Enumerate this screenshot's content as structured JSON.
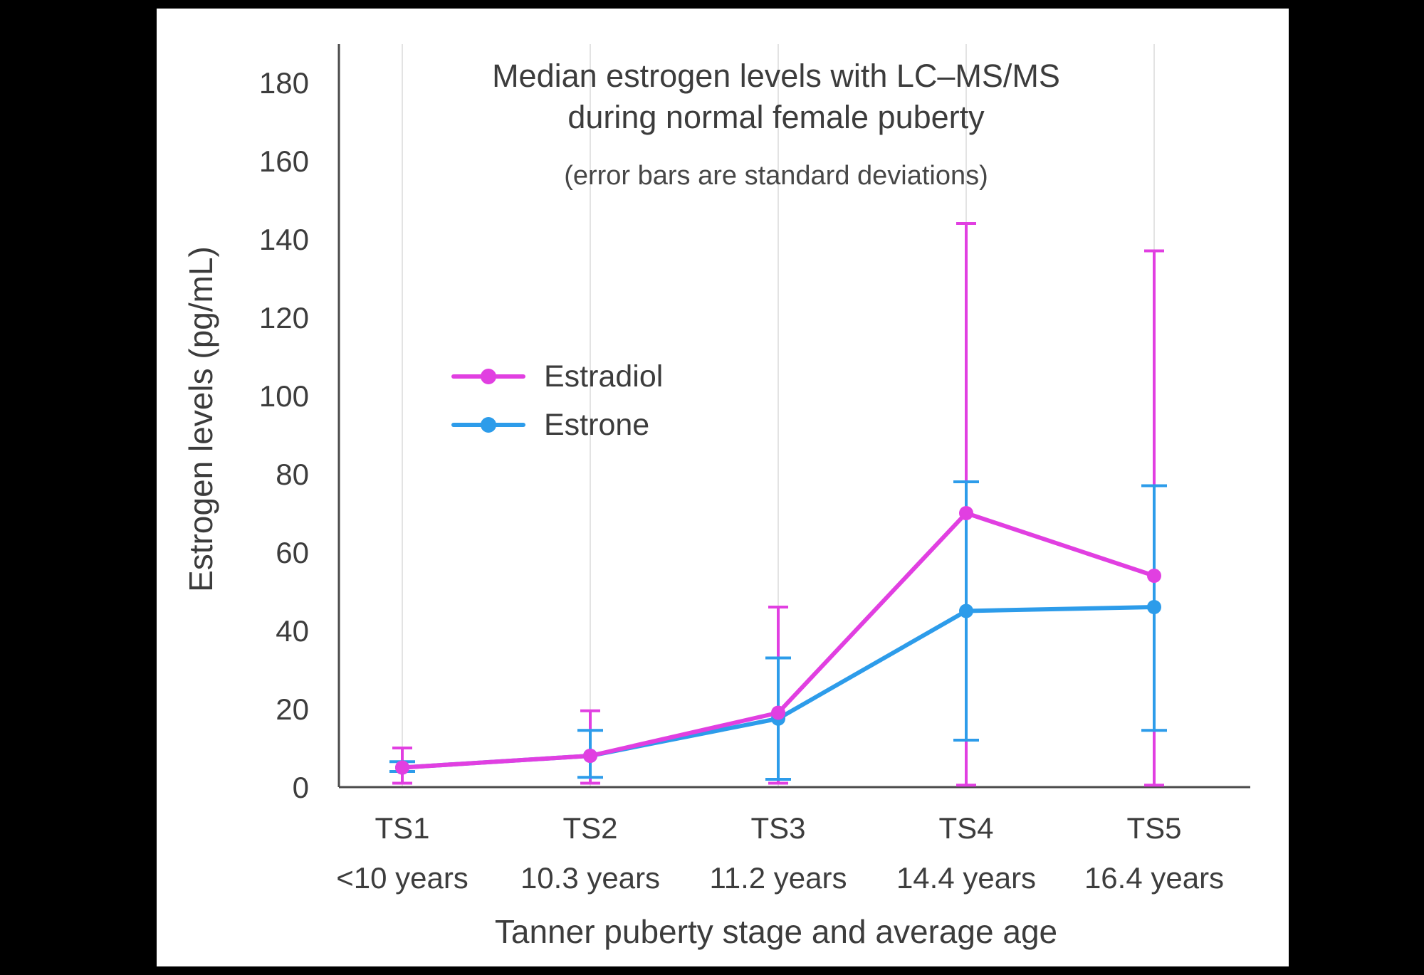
{
  "chart_data": {
    "type": "line",
    "title_line1": "Median estrogen levels with LC–MS/MS",
    "title_line2": "during normal female puberty",
    "subtitle": "(error bars are standard deviations)",
    "xlabel": "Tanner puberty stage and average age",
    "ylabel": "Estrogen levels (pg/mL)",
    "ylim": [
      0,
      190
    ],
    "yticks": [
      0,
      20,
      40,
      60,
      80,
      100,
      120,
      140,
      160,
      180
    ],
    "grid": "vertical-only",
    "legend_position": "upper-left-inside",
    "categories": [
      "TS1",
      "TS2",
      "TS3",
      "TS4",
      "TS5"
    ],
    "category_sublabels": [
      "<10 years",
      "10.3 years",
      "11.2 years",
      "14.4 years",
      "16.4 years"
    ],
    "series": [
      {
        "name": "Estradiol",
        "color": "#E13FE1",
        "values": [
          5,
          8,
          19,
          70,
          54
        ],
        "err_low": [
          1,
          1,
          1,
          0.5,
          0.5
        ],
        "err_high": [
          10,
          19.5,
          46,
          144,
          137
        ]
      },
      {
        "name": "Estrone",
        "color": "#2D9CEA",
        "values": [
          5,
          8,
          17.5,
          45,
          46
        ],
        "err_low": [
          4,
          2.5,
          2,
          12,
          14.5
        ],
        "err_high": [
          6.5,
          14.5,
          33,
          78,
          77
        ]
      }
    ]
  }
}
